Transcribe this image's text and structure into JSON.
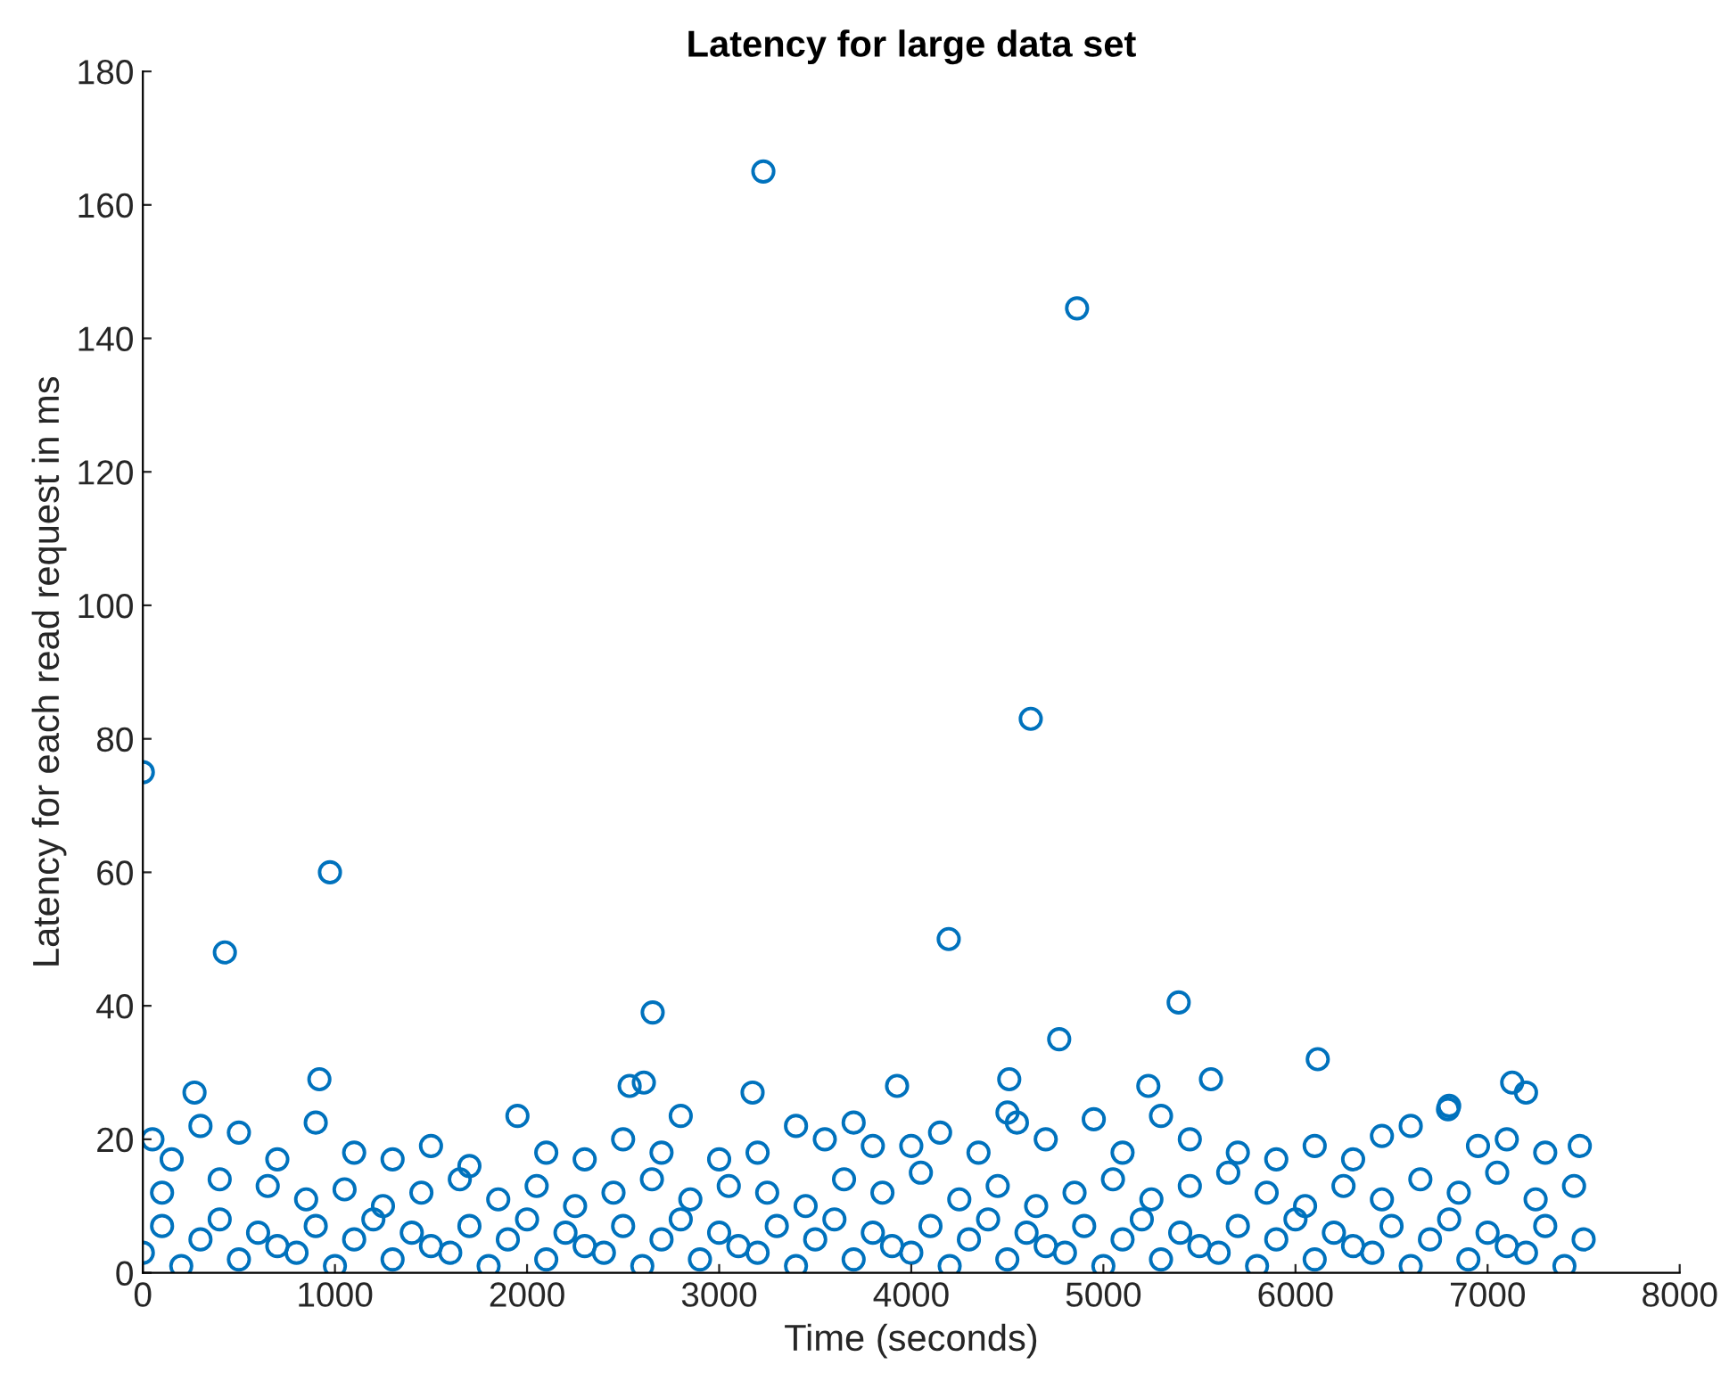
{
  "chart_data": {
    "type": "scatter",
    "title": "Latency for large data set",
    "xlabel": "Time (seconds)",
    "ylabel": "Latency for each read request in ms",
    "xlim": [
      0,
      8000
    ],
    "ylim": [
      0,
      180
    ],
    "xticks": [
      0,
      1000,
      2000,
      3000,
      4000,
      5000,
      6000,
      7000,
      8000
    ],
    "yticks": [
      0,
      20,
      40,
      60,
      80,
      100,
      120,
      140,
      160,
      180
    ],
    "marker": "circle",
    "grid": false,
    "legend": false,
    "series": [
      {
        "color": "#0072bd",
        "x": [
          0,
          427,
          974,
          3230,
          4863,
          4622,
          4195,
          2654,
          5392,
          4770,
          6116,
          269,
          919,
          2534,
          2608,
          3174,
          3926,
          5234,
          4510,
          7128,
          7200,
          4501,
          6794,
          50,
          150,
          300,
          500,
          700,
          900,
          1100,
          1300,
          1500,
          1700,
          1950,
          2100,
          2300,
          2500,
          2700,
          2800,
          3000,
          3200,
          3400,
          3550,
          3700,
          3800,
          4000,
          4150,
          4350,
          4550,
          4700,
          4950,
          5100,
          5300,
          5450,
          5560,
          5700,
          5900,
          6100,
          6300,
          6450,
          6600,
          6800,
          6950,
          7100,
          7300,
          7480,
          100,
          400,
          650,
          850,
          1050,
          1250,
          1450,
          1650,
          1850,
          2050,
          2250,
          2450,
          2650,
          2850,
          3050,
          3250,
          3450,
          3650,
          3850,
          4050,
          4250,
          4450,
          4650,
          4850,
          5050,
          5250,
          5450,
          5650,
          5850,
          6050,
          6250,
          6450,
          6650,
          6850,
          7050,
          7250,
          7450,
          0,
          100,
          200,
          300,
          400,
          500,
          600,
          700,
          800,
          900,
          1000,
          1100,
          1200,
          1300,
          1400,
          1500,
          1600,
          1700,
          1800,
          1900,
          2000,
          2100,
          2200,
          2300,
          2400,
          2500,
          2600,
          2700,
          2800,
          2900,
          3000,
          3100,
          3200,
          3300,
          3400,
          3500,
          3600,
          3700,
          3800,
          3900,
          4000,
          4100,
          4200,
          4300,
          4400,
          4500,
          4600,
          4700,
          4800,
          4900,
          5000,
          5100,
          5200,
          5300,
          5400,
          5500,
          5600,
          5700,
          5800,
          5900,
          6000,
          6100,
          6200,
          6300,
          6400,
          6500,
          6600,
          6700,
          6800,
          6900,
          7000,
          7100,
          7200,
          7300,
          7400,
          7500
        ],
        "values": [
          75,
          48,
          60,
          165,
          144.5,
          83,
          50,
          39,
          40.5,
          35,
          32,
          27,
          29,
          28,
          28.5,
          27,
          28,
          28,
          29,
          28.5,
          27,
          24,
          24.5,
          20,
          17,
          22,
          21,
          17,
          22.5,
          18,
          17,
          19,
          16,
          23.5,
          18,
          17,
          20,
          18,
          23.5,
          17,
          18,
          22,
          20,
          22.5,
          19,
          19,
          21,
          18,
          22.5,
          20,
          23,
          18,
          23.5,
          20,
          29,
          18,
          17,
          19,
          17,
          20.5,
          22,
          25,
          19,
          20,
          18,
          19,
          12,
          14,
          13,
          11,
          12.5,
          10,
          12,
          14,
          11,
          13,
          10,
          12,
          14,
          11,
          13,
          12,
          10,
          14,
          12,
          15,
          11,
          13,
          10,
          12,
          14,
          11,
          13,
          15,
          12,
          10,
          13,
          11,
          14,
          12,
          15,
          11,
          13,
          3,
          7,
          1,
          5,
          8,
          2,
          6,
          4,
          3,
          7,
          1,
          5,
          8,
          2,
          6,
          4,
          3,
          7,
          1,
          5,
          8,
          2,
          6,
          4,
          3,
          7,
          1,
          5,
          8,
          2,
          6,
          4,
          3,
          7,
          1,
          5,
          8,
          2,
          6,
          4,
          3,
          7,
          1,
          5,
          8,
          2,
          6,
          4,
          3,
          7,
          1,
          5,
          8,
          2,
          6,
          4,
          3,
          7,
          1,
          5,
          8,
          2,
          6,
          4,
          3,
          7,
          1,
          5,
          8,
          2,
          6,
          4,
          3,
          7,
          1,
          5
        ]
      }
    ]
  }
}
